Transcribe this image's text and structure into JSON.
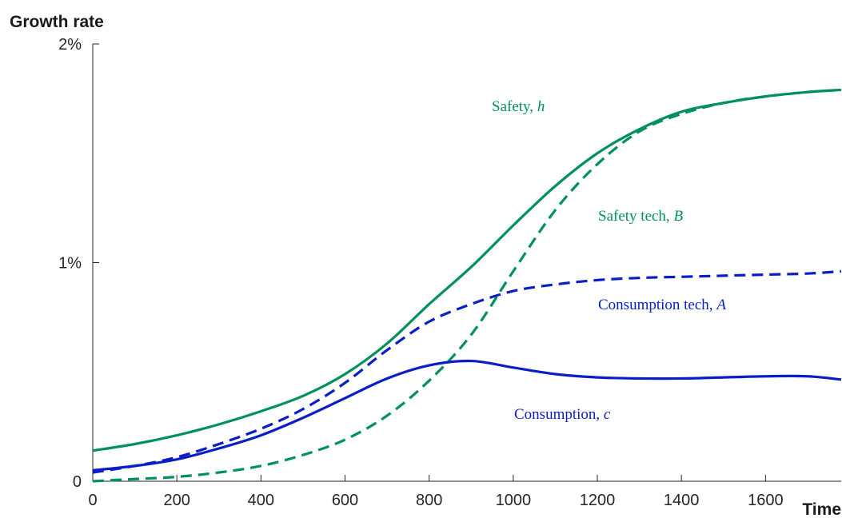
{
  "chart_data": {
    "type": "line",
    "title": "",
    "xlabel": "Time",
    "ylabel": "Growth rate",
    "xlim": [
      0,
      1780
    ],
    "ylim": [
      0,
      2
    ],
    "xticks": [
      0,
      200,
      400,
      600,
      800,
      1000,
      1200,
      1400,
      1600
    ],
    "yticks": [
      {
        "value": 0,
        "label": "0"
      },
      {
        "value": 1,
        "label": "1%"
      },
      {
        "value": 2,
        "label": "2%"
      }
    ],
    "grid": false,
    "series": [
      {
        "name": "Safety, h",
        "label_text": "Safety, ",
        "label_var": "h",
        "color": "#009060",
        "dash": "solid",
        "x": [
          0,
          100,
          200,
          300,
          400,
          500,
          600,
          700,
          800,
          900,
          1000,
          1100,
          1200,
          1300,
          1400,
          1500,
          1600,
          1700,
          1780
        ],
        "y": [
          0.14,
          0.17,
          0.21,
          0.26,
          0.32,
          0.39,
          0.49,
          0.63,
          0.81,
          0.98,
          1.17,
          1.35,
          1.5,
          1.61,
          1.69,
          1.73,
          1.76,
          1.78,
          1.79
        ]
      },
      {
        "name": "Safety tech, B",
        "label_text": "Safety tech, ",
        "label_var": "B",
        "color": "#009060",
        "dash": "dashed",
        "x": [
          0,
          100,
          200,
          300,
          400,
          500,
          600,
          700,
          800,
          900,
          1000,
          1100,
          1200,
          1300,
          1400,
          1500,
          1600,
          1700,
          1780
        ],
        "y": [
          0.0,
          0.01,
          0.02,
          0.04,
          0.07,
          0.12,
          0.19,
          0.3,
          0.46,
          0.67,
          0.96,
          1.24,
          1.45,
          1.6,
          1.68,
          1.73,
          1.76,
          1.78,
          1.79
        ]
      },
      {
        "name": "Consumption tech, A",
        "label_text": "Consumption tech, ",
        "label_var": "A",
        "color": "#0a1ec8",
        "dash": "dashed",
        "x": [
          0,
          100,
          200,
          300,
          400,
          500,
          600,
          700,
          800,
          900,
          1000,
          1100,
          1200,
          1300,
          1400,
          1500,
          1600,
          1700,
          1780
        ],
        "y": [
          0.04,
          0.07,
          0.11,
          0.17,
          0.24,
          0.33,
          0.45,
          0.6,
          0.73,
          0.81,
          0.87,
          0.9,
          0.92,
          0.93,
          0.935,
          0.94,
          0.945,
          0.95,
          0.96
        ]
      },
      {
        "name": "Consumption, c",
        "label_text": "Consumption, ",
        "label_var": "c",
        "color": "#0a1ec8",
        "dash": "solid",
        "x": [
          0,
          100,
          200,
          300,
          400,
          500,
          600,
          700,
          800,
          900,
          1000,
          1100,
          1200,
          1300,
          1400,
          1500,
          1600,
          1700,
          1780
        ],
        "y": [
          0.05,
          0.07,
          0.1,
          0.15,
          0.21,
          0.29,
          0.38,
          0.47,
          0.53,
          0.55,
          0.52,
          0.49,
          0.475,
          0.47,
          0.47,
          0.475,
          0.48,
          0.48,
          0.465
        ]
      }
    ]
  }
}
